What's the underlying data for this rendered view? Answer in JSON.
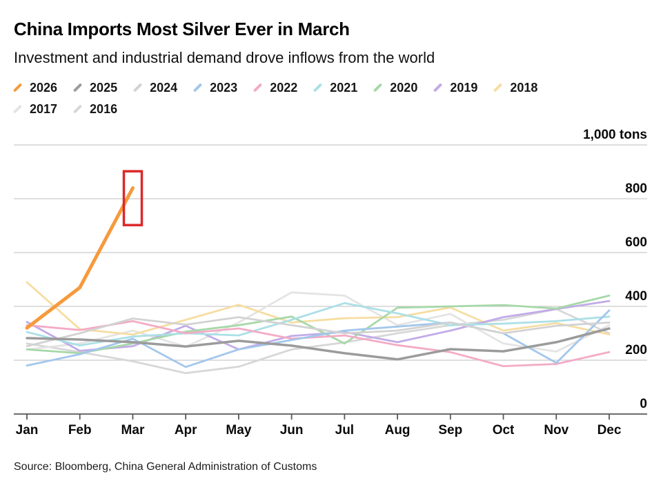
{
  "header": {
    "title": "China Imports Most Silver Ever in March",
    "subtitle": "Investment and industrial demand drove inflows from the world"
  },
  "source": "Source: Bloomberg, China General Administration of Customs",
  "chart_data": {
    "type": "line",
    "title": "China Imports Most Silver Ever in March",
    "subtitle": "Investment and industrial demand drove inflows from the world",
    "unit_label": "1,000 tons",
    "categories": [
      "Jan",
      "Feb",
      "Mar",
      "Apr",
      "May",
      "Jun",
      "Jul",
      "Aug",
      "Sep",
      "Oct",
      "Nov",
      "Dec"
    ],
    "ylim": [
      0,
      1000
    ],
    "grid": true,
    "legend_position": "top",
    "y_ticks": [
      {
        "value": 0,
        "label": "0"
      },
      {
        "value": 200,
        "label": "200"
      },
      {
        "value": 400,
        "label": "400"
      },
      {
        "value": 600,
        "label": "600"
      },
      {
        "value": 800,
        "label": "800"
      },
      {
        "value": 1000,
        "label": "1,000 tons"
      }
    ],
    "series": [
      {
        "name": "2026",
        "color": "#f59a3d",
        "stroke_width": 5,
        "values": [
          320,
          470,
          840,
          null,
          null,
          null,
          null,
          null,
          null,
          null,
          null,
          null
        ]
      },
      {
        "name": "2025",
        "color": "#9b9b9b",
        "stroke_width": 3.5,
        "values": [
          282,
          277,
          267,
          251,
          272,
          254,
          226,
          203,
          241,
          233,
          267,
          318
        ]
      },
      {
        "name": "2024",
        "color": "#d2d2d2",
        "stroke_width": 2.8,
        "values": [
          252,
          300,
          355,
          332,
          360,
          330,
          300,
          310,
          340,
          300,
          328,
          340
        ]
      },
      {
        "name": "2023",
        "color": "#a3c7ec",
        "stroke_width": 2.8,
        "values": [
          180,
          222,
          280,
          175,
          240,
          275,
          310,
          325,
          340,
          300,
          190,
          385
        ]
      },
      {
        "name": "2022",
        "color": "#f3abc6",
        "stroke_width": 2.8,
        "values": [
          330,
          312,
          345,
          300,
          318,
          280,
          292,
          256,
          230,
          178,
          186,
          230
        ]
      },
      {
        "name": "2021",
        "color": "#abe0e6",
        "stroke_width": 2.8,
        "values": [
          305,
          255,
          288,
          300,
          292,
          350,
          412,
          374,
          330,
          336,
          345,
          362
        ]
      },
      {
        "name": "2020",
        "color": "#a6d8a8",
        "stroke_width": 2.8,
        "values": [
          240,
          226,
          262,
          306,
          330,
          362,
          262,
          395,
          400,
          405,
          392,
          440
        ]
      },
      {
        "name": "2019",
        "color": "#c1abe8",
        "stroke_width": 2.8,
        "values": [
          342,
          235,
          252,
          328,
          240,
          290,
          305,
          267,
          310,
          360,
          390,
          420
        ]
      },
      {
        "name": "2018",
        "color": "#f6dda1",
        "stroke_width": 2.8,
        "values": [
          490,
          315,
          295,
          350,
          406,
          340,
          356,
          360,
          396,
          310,
          338,
          296
        ]
      },
      {
        "name": "2017",
        "color": "#e4e4e4",
        "stroke_width": 2.8,
        "values": [
          240,
          262,
          310,
          250,
          340,
          452,
          440,
          330,
          372,
          262,
          232,
          330
        ]
      },
      {
        "name": "2016",
        "color": "#d7d7d7",
        "stroke_width": 2.8,
        "values": [
          262,
          230,
          196,
          152,
          176,
          240,
          266,
          300,
          330,
          350,
          390,
          300
        ]
      }
    ],
    "annotation": {
      "type": "highlight-box",
      "month": "Mar",
      "series": "2026",
      "value_range": [
        702,
        902
      ],
      "color": "#dc2828"
    }
  }
}
